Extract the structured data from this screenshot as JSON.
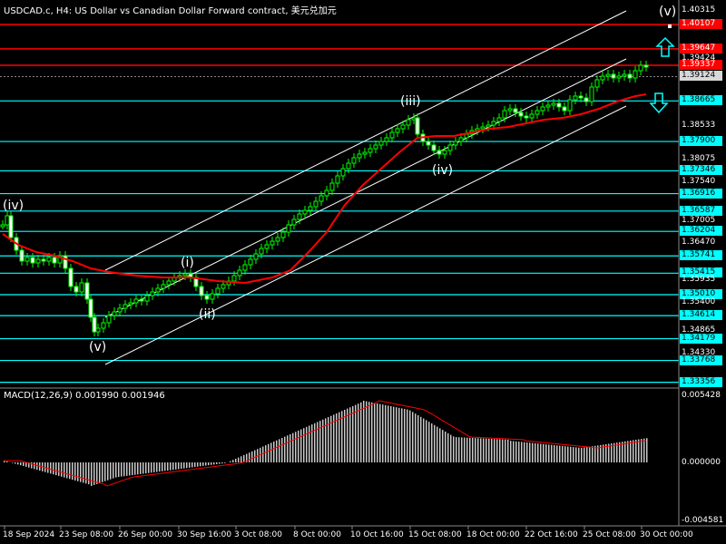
{
  "header": {
    "title": "USDCAD.c, H4:  US Dollar vs Canadian Dollar Forward contract, 美元兑加元"
  },
  "macd": {
    "title": "MACD(12,26,9) 0.001990 0.001946",
    "scale": [
      "0.005428",
      "0.000000",
      "-0.004581"
    ]
  },
  "price_axis": {
    "ticks": [
      "1.40315",
      "1.39424",
      "1.38533",
      "1.38075",
      "1.37540",
      "1.37005",
      "1.36470",
      "1.35935",
      "1.35400",
      "1.34865",
      "1.34330"
    ],
    "red_levels": [
      {
        "label": "1.40107",
        "value": 1.40107
      },
      {
        "label": "1.39647",
        "value": 1.39647
      },
      {
        "label": "1.39337",
        "value": 1.39337
      }
    ],
    "current_price": {
      "label": "1.39124",
      "value": 1.39124
    },
    "cyan_levels": [
      {
        "label": "1.38665",
        "value": 1.38665
      },
      {
        "label": "1.37900",
        "value": 1.379
      },
      {
        "label": "1.37346",
        "value": 1.37346
      },
      {
        "label": "1.36916",
        "value": 1.36916
      },
      {
        "label": "1.36587",
        "value": 1.36587
      },
      {
        "label": "1.36204",
        "value": 1.36204
      },
      {
        "label": "1.35741",
        "value": 1.35741
      },
      {
        "label": "1.35415",
        "value": 1.35415
      },
      {
        "label": "1.35010",
        "value": 1.3501
      },
      {
        "label": "1.34614",
        "value": 1.34614
      },
      {
        "label": "1.34179",
        "value": 1.34179
      },
      {
        "label": "1.33768",
        "value": 1.33768
      },
      {
        "label": "1.33356",
        "value": 1.33356
      }
    ]
  },
  "time_axis": [
    "18 Sep 2024",
    "23 Sep 08:00",
    "26 Sep 00:00",
    "30 Sep 16:00",
    "3 Oct 08:00",
    "8 Oct 00:00",
    "10 Oct 16:00",
    "15 Oct 08:00",
    "18 Oct 00:00",
    "22 Oct 16:00",
    "25 Oct 08:00",
    "30 Oct 00:00"
  ],
  "waves": [
    "(iv)",
    "(v)",
    "(i)",
    "(ii)",
    "(iii)",
    "(iv)",
    "(v)"
  ],
  "colors": {
    "background": "#000000",
    "bull_candle": "#00ff00",
    "bear_candle": "#00ff00",
    "moving_average": "#ff0000",
    "channel": "#ffffff",
    "support_levels": "#00ffff",
    "resistance_levels": "#ff0000",
    "macd_histogram": "#c0c0c0",
    "macd_signal": "#ff0000",
    "arrows": "#00ffff"
  },
  "icons": [
    "arrow-up-icon",
    "arrow-down-icon"
  ]
}
